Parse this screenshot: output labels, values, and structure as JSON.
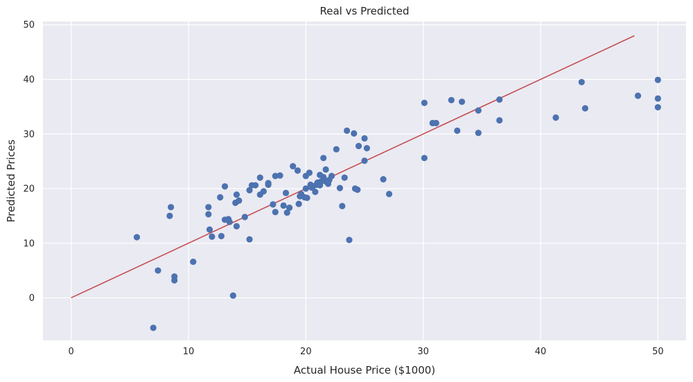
{
  "chart_data": {
    "type": "scatter",
    "title": "Real vs Predicted",
    "xlabel": "Actual House Price ($1000)",
    "ylabel": "Predicted Prices",
    "xlim": [
      -2.4,
      52.4
    ],
    "ylim": [
      -7.8,
      50.6
    ],
    "xticks": [
      0,
      10,
      20,
      30,
      40,
      50
    ],
    "yticks": [
      0,
      10,
      20,
      30,
      40,
      50
    ],
    "grid": true,
    "colors": {
      "background": "#eaeaf2",
      "grid": "#ffffff",
      "points": "#4c72b0",
      "line": "#c44e52"
    },
    "reference_line": {
      "x": [
        0,
        48
      ],
      "y": [
        0,
        48
      ]
    },
    "points": [
      {
        "x": 5.6,
        "y": 11.1
      },
      {
        "x": 7.0,
        "y": -5.5
      },
      {
        "x": 7.4,
        "y": 5.0
      },
      {
        "x": 8.4,
        "y": 15.0
      },
      {
        "x": 8.5,
        "y": 16.6
      },
      {
        "x": 8.8,
        "y": 3.9
      },
      {
        "x": 8.8,
        "y": 3.2
      },
      {
        "x": 10.4,
        "y": 6.6
      },
      {
        "x": 11.7,
        "y": 16.6
      },
      {
        "x": 11.7,
        "y": 15.3
      },
      {
        "x": 11.8,
        "y": 12.5
      },
      {
        "x": 12.0,
        "y": 11.2
      },
      {
        "x": 12.7,
        "y": 18.4
      },
      {
        "x": 12.8,
        "y": 11.3
      },
      {
        "x": 13.1,
        "y": 20.4
      },
      {
        "x": 13.1,
        "y": 14.3
      },
      {
        "x": 13.4,
        "y": 14.4
      },
      {
        "x": 13.5,
        "y": 13.9
      },
      {
        "x": 13.8,
        "y": 0.4
      },
      {
        "x": 14.0,
        "y": 17.4
      },
      {
        "x": 14.1,
        "y": 13.1
      },
      {
        "x": 14.1,
        "y": 18.9
      },
      {
        "x": 14.3,
        "y": 17.8
      },
      {
        "x": 14.8,
        "y": 14.8
      },
      {
        "x": 15.2,
        "y": 19.7
      },
      {
        "x": 15.2,
        "y": 10.7
      },
      {
        "x": 15.4,
        "y": 20.6
      },
      {
        "x": 15.7,
        "y": 20.6
      },
      {
        "x": 16.1,
        "y": 22.0
      },
      {
        "x": 16.1,
        "y": 18.9
      },
      {
        "x": 16.4,
        "y": 19.5
      },
      {
        "x": 16.8,
        "y": 20.7
      },
      {
        "x": 16.8,
        "y": 21.0
      },
      {
        "x": 17.2,
        "y": 17.1
      },
      {
        "x": 17.4,
        "y": 22.3
      },
      {
        "x": 17.4,
        "y": 15.7
      },
      {
        "x": 17.8,
        "y": 22.4
      },
      {
        "x": 18.1,
        "y": 16.9
      },
      {
        "x": 18.3,
        "y": 19.2
      },
      {
        "x": 18.4,
        "y": 15.6
      },
      {
        "x": 18.6,
        "y": 16.5
      },
      {
        "x": 18.9,
        "y": 24.1
      },
      {
        "x": 19.3,
        "y": 23.3
      },
      {
        "x": 19.4,
        "y": 17.2
      },
      {
        "x": 19.5,
        "y": 18.6
      },
      {
        "x": 19.6,
        "y": 19.0
      },
      {
        "x": 19.9,
        "y": 18.4
      },
      {
        "x": 20.0,
        "y": 22.3
      },
      {
        "x": 20.0,
        "y": 20.0
      },
      {
        "x": 20.1,
        "y": 18.3
      },
      {
        "x": 20.3,
        "y": 22.9
      },
      {
        "x": 20.4,
        "y": 20.7
      },
      {
        "x": 20.5,
        "y": 20.2
      },
      {
        "x": 20.6,
        "y": 20.4
      },
      {
        "x": 20.8,
        "y": 19.4
      },
      {
        "x": 20.9,
        "y": 20.7
      },
      {
        "x": 21.0,
        "y": 21.1
      },
      {
        "x": 21.2,
        "y": 22.5
      },
      {
        "x": 21.2,
        "y": 20.6
      },
      {
        "x": 21.3,
        "y": 21.3
      },
      {
        "x": 21.5,
        "y": 22.1
      },
      {
        "x": 21.5,
        "y": 25.6
      },
      {
        "x": 21.7,
        "y": 23.5
      },
      {
        "x": 21.7,
        "y": 21.3
      },
      {
        "x": 21.9,
        "y": 20.9
      },
      {
        "x": 22.0,
        "y": 21.6
      },
      {
        "x": 22.2,
        "y": 22.3
      },
      {
        "x": 22.6,
        "y": 27.2
      },
      {
        "x": 22.9,
        "y": 20.1
      },
      {
        "x": 23.1,
        "y": 16.8
      },
      {
        "x": 23.3,
        "y": 22.0
      },
      {
        "x": 23.5,
        "y": 30.6
      },
      {
        "x": 23.7,
        "y": 10.6
      },
      {
        "x": 24.1,
        "y": 30.1
      },
      {
        "x": 24.2,
        "y": 20.0
      },
      {
        "x": 24.4,
        "y": 19.8
      },
      {
        "x": 24.5,
        "y": 27.8
      },
      {
        "x": 25.0,
        "y": 29.2
      },
      {
        "x": 25.0,
        "y": 25.1
      },
      {
        "x": 25.2,
        "y": 27.4
      },
      {
        "x": 26.6,
        "y": 21.7
      },
      {
        "x": 27.1,
        "y": 19.0
      },
      {
        "x": 30.1,
        "y": 35.7
      },
      {
        "x": 30.1,
        "y": 25.6
      },
      {
        "x": 30.8,
        "y": 32.0
      },
      {
        "x": 31.1,
        "y": 32.0
      },
      {
        "x": 32.4,
        "y": 36.2
      },
      {
        "x": 32.9,
        "y": 30.6
      },
      {
        "x": 33.3,
        "y": 35.9
      },
      {
        "x": 34.7,
        "y": 34.3
      },
      {
        "x": 34.7,
        "y": 30.2
      },
      {
        "x": 36.5,
        "y": 36.3
      },
      {
        "x": 36.5,
        "y": 32.5
      },
      {
        "x": 41.3,
        "y": 33.0
      },
      {
        "x": 43.5,
        "y": 39.5
      },
      {
        "x": 43.8,
        "y": 34.7
      },
      {
        "x": 48.3,
        "y": 37.0
      },
      {
        "x": 50.0,
        "y": 39.9
      },
      {
        "x": 50.0,
        "y": 36.5
      },
      {
        "x": 50.0,
        "y": 34.9
      }
    ]
  }
}
